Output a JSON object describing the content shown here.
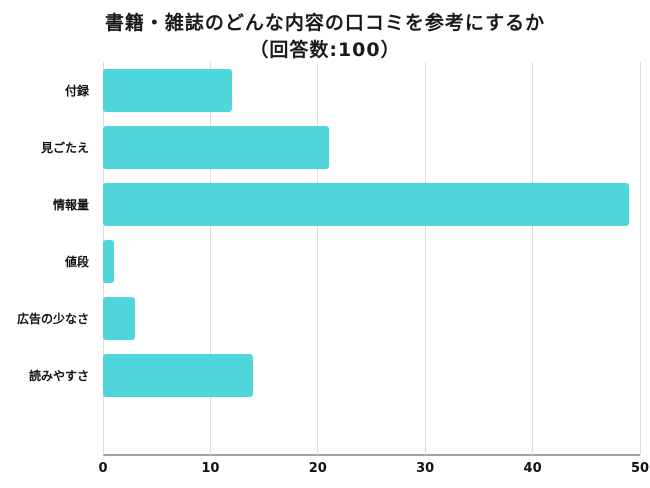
{
  "title": {
    "line1": "書籍・雑誌のどんな内容の口コミを参考にするか",
    "line2": "（回答数:100）"
  },
  "chart_data": {
    "type": "bar",
    "orientation": "horizontal",
    "title": "書籍・雑誌のどんな内容の口コミを参考にするか（回答数:100）",
    "categories": [
      "付録",
      "見ごたえ",
      "情報量",
      "値段",
      "広告の少なさ",
      "読みやすさ"
    ],
    "values": [
      12,
      21,
      49,
      1,
      3,
      14
    ],
    "xlabel": "",
    "ylabel": "",
    "xlim": [
      0,
      50
    ],
    "x_ticks": [
      0,
      10,
      20,
      30,
      40,
      50
    ],
    "grid": true,
    "legend": false,
    "bar_color": "#4ed6dc",
    "gridline_color": "#dddddd",
    "axis_line_color": "#a3a3a3",
    "text_color": "#1a1a1a"
  }
}
